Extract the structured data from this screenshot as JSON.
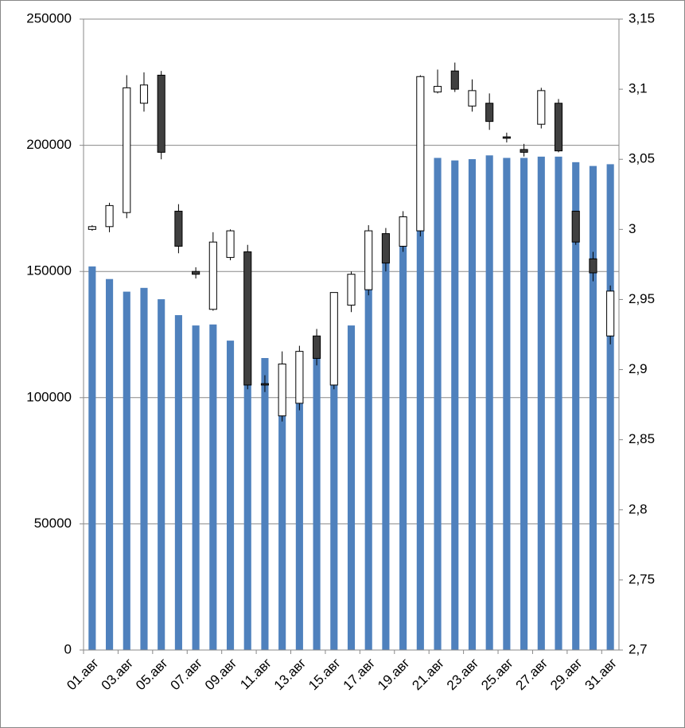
{
  "chart_data": {
    "type": "combo",
    "categories": [
      "01.авг",
      null,
      "03.авг",
      null,
      "05.авг",
      null,
      "07.авг",
      null,
      "09.авг",
      null,
      "11.авг",
      null,
      "13.авг",
      null,
      "15.авг",
      null,
      "17.авг",
      null,
      "19.авг",
      null,
      "21.авг",
      null,
      "23.авг",
      null,
      "25.авг",
      null,
      "27.авг",
      null,
      "29.авг",
      null,
      "31.авг"
    ],
    "ylim": [
      0,
      250000
    ],
    "yticks": [
      0,
      50000,
      100000,
      150000,
      200000,
      250000
    ],
    "y2lim": [
      2.7,
      3.15
    ],
    "y2ticks": [
      {
        "value": 2.7,
        "label": "2,7"
      },
      {
        "value": 2.75,
        "label": "2,75"
      },
      {
        "value": 2.8,
        "label": "2,8"
      },
      {
        "value": 2.85,
        "label": "2,85"
      },
      {
        "value": 2.9,
        "label": "2,9"
      },
      {
        "value": 2.95,
        "label": "2,95"
      },
      3,
      {
        "value": 3.05,
        "label": "3,05"
      },
      {
        "value": 3.1,
        "label": "3,1"
      },
      {
        "value": 3.15,
        "label": "3,15"
      }
    ],
    "grid": true,
    "series": [
      {
        "type": "bar",
        "color": "#4f81bd",
        "values": [
          152000,
          147000,
          142000,
          143500,
          139000,
          132700,
          128600,
          129000,
          122600,
          105000,
          115700,
          93000,
          97700,
          115700,
          105000,
          128600,
          143000,
          153500,
          160000,
          166000,
          195000,
          194000,
          194500,
          196000,
          195000,
          195000,
          195500,
          195500,
          193300,
          191800,
          192500
        ]
      },
      {
        "type": "candlestick",
        "axis": "y2",
        "up_color": "#ffffff",
        "down_color": "#404040",
        "open": [
          3.0,
          3.002,
          3.012,
          3.09,
          3.11,
          3.013,
          2.97,
          2.943,
          2.98,
          2.984,
          2.89,
          2.867,
          2.876,
          2.924,
          2.889,
          2.946,
          2.957,
          2.997,
          2.988,
          2.999,
          3.098,
          3.113,
          3.088,
          3.09,
          3.066,
          3.057,
          3.075,
          3.09,
          3.013,
          2.979,
          2.924
        ],
        "high": [
          3.003,
          3.019,
          3.11,
          3.112,
          3.113,
          3.018,
          2.973,
          2.998,
          3.0,
          2.989,
          2.896,
          2.913,
          2.917,
          2.929,
          2.955,
          2.97,
          3.003,
          3.001,
          3.013,
          3.11,
          3.114,
          3.119,
          3.107,
          3.097,
          3.069,
          3.061,
          3.101,
          3.093,
          3.013,
          2.984,
          2.96
        ],
        "low": [
          2.999,
          2.998,
          3.008,
          3.084,
          3.05,
          2.983,
          2.965,
          2.942,
          2.978,
          2.886,
          2.884,
          2.863,
          2.871,
          2.903,
          2.886,
          2.941,
          2.953,
          2.97,
          2.984,
          2.995,
          3.097,
          3.098,
          3.084,
          3.071,
          3.062,
          3.052,
          3.072,
          3.055,
          2.989,
          2.963,
          2.918
        ],
        "close": [
          3.002,
          3.017,
          3.101,
          3.103,
          3.055,
          2.988,
          2.968,
          2.991,
          2.999,
          2.889,
          2.889,
          2.904,
          2.913,
          2.908,
          2.955,
          2.968,
          2.999,
          2.976,
          3.009,
          3.109,
          3.102,
          3.1,
          3.099,
          3.077,
          3.065,
          3.055,
          3.099,
          3.056,
          2.991,
          2.969,
          2.956
        ]
      }
    ]
  }
}
